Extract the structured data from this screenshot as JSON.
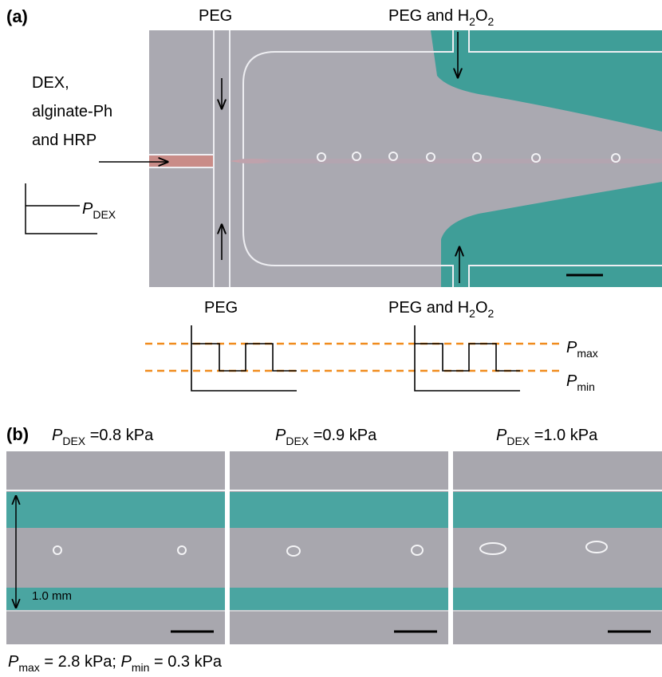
{
  "panel_a": {
    "label": "(a)",
    "top_labels": [
      [
        "PEG"
      ],
      [
        "PEG and H",
        "2",
        "O",
        "2"
      ]
    ],
    "inlet_label": [
      "DEX,",
      "alginate-Ph",
      "and HRP"
    ],
    "pressure_label": [
      "P",
      "DEX"
    ],
    "plot_titles": [
      [
        "PEG"
      ],
      [
        "PEG and H",
        "2",
        "O",
        "2"
      ]
    ],
    "pmax_label": [
      "P",
      "max"
    ],
    "pmin_label": [
      "P",
      "min"
    ]
  },
  "panel_b": {
    "label": "(b)",
    "titles": [
      [
        "P",
        "DEX",
        " =0.8 kPa"
      ],
      [
        "P",
        "DEX",
        " =0.9 kPa"
      ],
      [
        "P",
        "DEX",
        " =1.0 kPa"
      ]
    ],
    "scale_label": "1.0 mm",
    "caption": [
      "P",
      "max",
      " = 2.8 kPa; ",
      "P",
      "min",
      " = 0.3 kPa"
    ]
  }
}
